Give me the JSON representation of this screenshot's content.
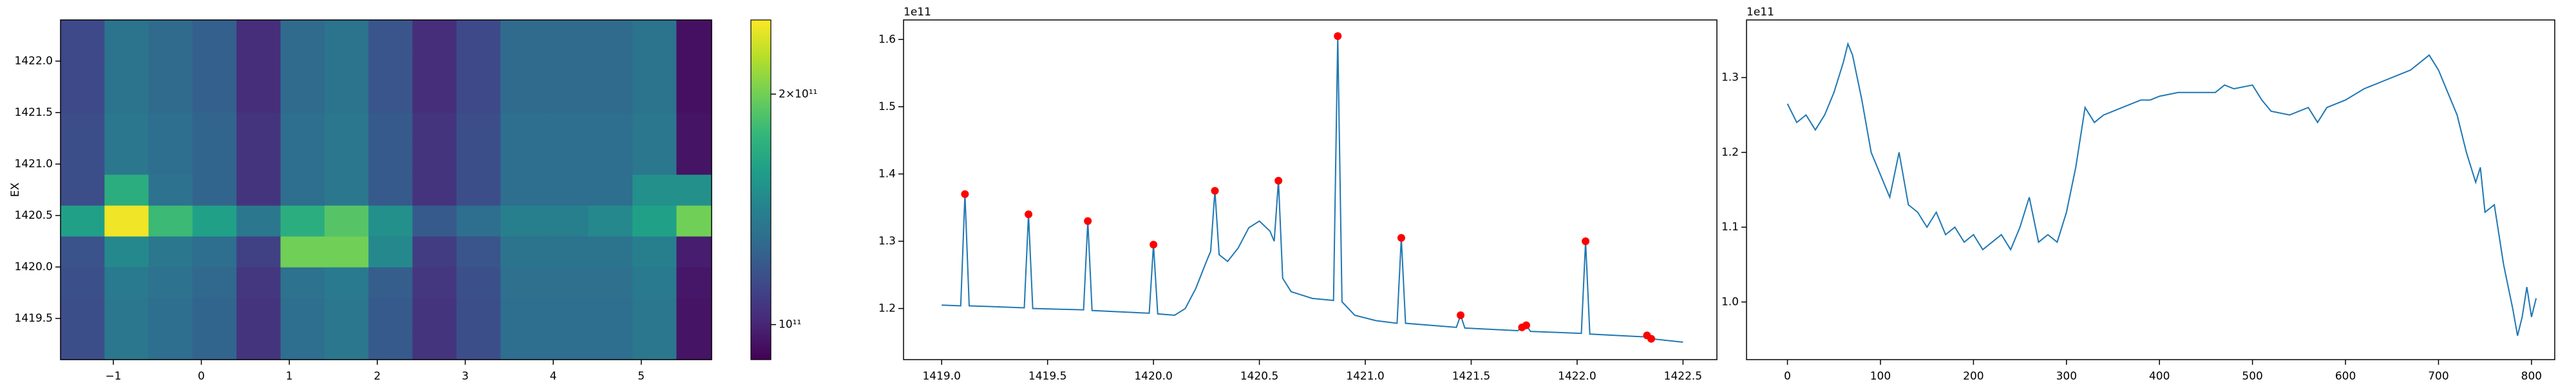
{
  "chart_data": [
    {
      "type": "heatmap",
      "y_label": "EX",
      "colormap": "viridis",
      "x_edges": [
        -1.6,
        -1.1,
        -0.6,
        -0.1,
        0.4,
        0.9,
        1.4,
        1.9,
        2.4,
        2.9,
        3.4,
        3.9,
        4.4,
        4.9,
        5.4,
        5.8
      ],
      "y_edges": [
        1419.1,
        1419.4,
        1419.7,
        1420.0,
        1420.3,
        1420.6,
        1420.9,
        1421.2,
        1421.5,
        1421.8,
        1422.1,
        1422.4
      ],
      "z": [
        [
          115000000000.0,
          135000000000.0,
          130000000000.0,
          125000000000.0,
          105000000000.0,
          130000000000.0,
          135000000000.0,
          120000000000.0,
          105000000000.0,
          115000000000.0,
          130000000000.0,
          130000000000.0,
          130000000000.0,
          135000000000.0,
          95000000000.0
        ],
        [
          115000000000.0,
          135000000000.0,
          130000000000.0,
          125000000000.0,
          105000000000.0,
          130000000000.0,
          135000000000.0,
          120000000000.0,
          105000000000.0,
          115000000000.0,
          130000000000.0,
          130000000000.0,
          130000000000.0,
          135000000000.0,
          95000000000.0
        ],
        [
          116000000000.0,
          137000000000.0,
          132000000000.0,
          127000000000.0,
          106000000000.0,
          132000000000.0,
          137000000000.0,
          122000000000.0,
          106000000000.0,
          116000000000.0,
          131000000000.0,
          131000000000.0,
          131000000000.0,
          137000000000.0,
          96000000000.0
        ],
        [
          117000000000.0,
          145000000000.0,
          135000000000.0,
          130000000000.0,
          110000000000.0,
          200000000000.0,
          200000000000.0,
          145000000000.0,
          108000000000.0,
          118000000000.0,
          133000000000.0,
          133000000000.0,
          133000000000.0,
          140000000000.0,
          98000000000.0
        ],
        [
          160000000000.0,
          245000000000.0,
          180000000000.0,
          160000000000.0,
          135000000000.0,
          170000000000.0,
          190000000000.0,
          150000000000.0,
          120000000000.0,
          130000000000.0,
          140000000000.0,
          140000000000.0,
          145000000000.0,
          160000000000.0,
          200000000000.0
        ],
        [
          115000000000.0,
          170000000000.0,
          132000000000.0,
          125000000000.0,
          105000000000.0,
          130000000000.0,
          135000000000.0,
          120000000000.0,
          105000000000.0,
          115000000000.0,
          130000000000.0,
          130000000000.0,
          130000000000.0,
          150000000000.0,
          150000000000.0
        ],
        [
          115000000000.0,
          135000000000.0,
          130000000000.0,
          125000000000.0,
          105000000000.0,
          130000000000.0,
          135000000000.0,
          120000000000.0,
          105000000000.0,
          115000000000.0,
          130000000000.0,
          130000000000.0,
          130000000000.0,
          135000000000.0,
          95000000000.0
        ],
        [
          115000000000.0,
          135000000000.0,
          130000000000.0,
          125000000000.0,
          105000000000.0,
          130000000000.0,
          135000000000.0,
          120000000000.0,
          105000000000.0,
          115000000000.0,
          130000000000.0,
          130000000000.0,
          130000000000.0,
          135000000000.0,
          95000000000.0
        ],
        [
          113000000000.0,
          133000000000.0,
          128000000000.0,
          123000000000.0,
          103000000000.0,
          128000000000.0,
          133000000000.0,
          118000000000.0,
          103000000000.0,
          113000000000.0,
          128000000000.0,
          128000000000.0,
          128000000000.0,
          133000000000.0,
          94000000000.0
        ],
        [
          113000000000.0,
          133000000000.0,
          128000000000.0,
          123000000000.0,
          103000000000.0,
          128000000000.0,
          133000000000.0,
          118000000000.0,
          103000000000.0,
          113000000000.0,
          128000000000.0,
          128000000000.0,
          128000000000.0,
          133000000000.0,
          94000000000.0
        ],
        [
          113000000000.0,
          133000000000.0,
          128000000000.0,
          123000000000.0,
          103000000000.0,
          128000000000.0,
          133000000000.0,
          118000000000.0,
          103000000000.0,
          113000000000.0,
          128000000000.0,
          128000000000.0,
          128000000000.0,
          133000000000.0,
          94000000000.0
        ]
      ],
      "xlim": [
        -1.6,
        5.8
      ],
      "xticks": [
        {
          "value": -1,
          "label": "−1"
        },
        0,
        1,
        2,
        3,
        4,
        5
      ],
      "ylim": [
        1419.1,
        1422.4
      ],
      "yticks": [
        1419.5,
        {
          "value": 1420.0,
          "label": "1420.0"
        },
        1420.5,
        {
          "value": 1421.0,
          "label": "1421.0"
        },
        1421.5,
        {
          "value": 1422.0,
          "label": "1422.0"
        }
      ],
      "colorbar": {
        "scale": "log",
        "lim": [
          90000000000.0,
          250000000000.0
        ],
        "ticks": [
          {
            "value": 200000000000.0,
            "label": "2×10¹¹"
          },
          {
            "value": 100000000000.0,
            "label": "10¹¹"
          }
        ]
      }
    },
    {
      "type": "line",
      "y_offset_text": "1e11",
      "xlim": [
        1418.82,
        1422.66
      ],
      "xticks": [
        {
          "value": 1419.0,
          "label": "1419.0"
        },
        1419.5,
        {
          "value": 1420.0,
          "label": "1420.0"
        },
        1420.5,
        {
          "value": 1421.0,
          "label": "1421.0"
        },
        1421.5,
        {
          "value": 1422.0,
          "label": "1422.0"
        },
        1422.5
      ],
      "ylim": [
        112400000000.0,
        162900000000.0
      ],
      "yticks": [
        {
          "value": 120000000000.0,
          "label": "1.2"
        },
        {
          "value": 130000000000.0,
          "label": "1.3"
        },
        {
          "value": 140000000000.0,
          "label": "1.4"
        },
        {
          "value": 150000000000.0,
          "label": "1.5"
        },
        {
          "value": 160000000000.0,
          "label": "1.6"
        }
      ],
      "series": [
        {
          "type": "line",
          "color": "#1f77b4",
          "x": [
            1419.0,
            1419.09,
            1419.11,
            1419.13,
            1419.39,
            1419.41,
            1419.43,
            1419.67,
            1419.69,
            1419.71,
            1419.98,
            1420.0,
            1420.02,
            1420.1,
            1420.15,
            1420.2,
            1420.25,
            1420.27,
            1420.29,
            1420.31,
            1420.35,
            1420.4,
            1420.45,
            1420.5,
            1420.55,
            1420.57,
            1420.59,
            1420.61,
            1420.65,
            1420.75,
            1420.85,
            1420.87,
            1420.89,
            1420.95,
            1421.05,
            1421.15,
            1421.17,
            1421.19,
            1421.43,
            1421.45,
            1421.47,
            1421.72,
            1421.74,
            1421.76,
            1421.78,
            1422.02,
            1422.04,
            1422.06,
            1422.31,
            1422.33,
            1422.35,
            1422.5
          ],
          "values": [
            120500000000.0,
            120400000000.0,
            137000000000.0,
            120400000000.0,
            120100000000.0,
            134000000000.0,
            120000000000.0,
            119800000000.0,
            133000000000.0,
            119700000000.0,
            119300000000.0,
            129500000000.0,
            119200000000.0,
            119000000000.0,
            120000000000.0,
            123000000000.0,
            127000000000.0,
            128500000000.0,
            137500000000.0,
            128000000000.0,
            127000000000.0,
            129000000000.0,
            132000000000.0,
            133000000000.0,
            131500000000.0,
            130000000000.0,
            139000000000.0,
            124500000000.0,
            122500000000.0,
            121500000000.0,
            121200000000.0,
            160500000000.0,
            121000000000.0,
            119000000000.0,
            118200000000.0,
            117800000000.0,
            130500000000.0,
            117800000000.0,
            117200000000.0,
            119000000000.0,
            117100000000.0,
            116700000000.0,
            117200000000.0,
            117500000000.0,
            116600000000.0,
            116300000000.0,
            130000000000.0,
            116200000000.0,
            115800000000.0,
            116000000000.0,
            115500000000.0,
            115000000000.0
          ]
        },
        {
          "type": "scatter",
          "color": "#ff0000",
          "x": [
            1419.11,
            1419.41,
            1419.69,
            1420.0,
            1420.29,
            1420.59,
            1420.87,
            1421.17,
            1421.45,
            1421.74,
            1421.76,
            1422.04,
            1422.33,
            1422.35
          ],
          "values": [
            137000000000.0,
            134000000000.0,
            133000000000.0,
            129500000000.0,
            137500000000.0,
            139000000000.0,
            160500000000.0,
            130500000000.0,
            119000000000.0,
            117200000000.0,
            117500000000.0,
            130000000000.0,
            116000000000.0,
            115500000000.0
          ]
        }
      ]
    },
    {
      "type": "line",
      "y_offset_text": "1e11",
      "xlim": [
        -44,
        825
      ],
      "xticks": [
        0,
        100,
        200,
        300,
        400,
        500,
        600,
        700,
        800
      ],
      "ylim": [
        92300000000.0,
        137700000000.0
      ],
      "yticks": [
        {
          "value": 100000000000.0,
          "label": "1.0"
        },
        {
          "value": 110000000000.0,
          "label": "1.1"
        },
        {
          "value": 120000000000.0,
          "label": "1.2"
        },
        {
          "value": 130000000000.0,
          "label": "1.3"
        }
      ],
      "series": [
        {
          "type": "line",
          "color": "#1f77b4",
          "x": [
            0,
            10,
            20,
            30,
            40,
            50,
            60,
            65,
            70,
            80,
            90,
            100,
            110,
            120,
            130,
            140,
            150,
            160,
            170,
            180,
            190,
            200,
            210,
            220,
            230,
            240,
            250,
            260,
            270,
            280,
            290,
            300,
            310,
            320,
            330,
            340,
            350,
            360,
            370,
            380,
            390,
            400,
            420,
            440,
            460,
            470,
            480,
            500,
            510,
            520,
            540,
            560,
            570,
            580,
            600,
            620,
            640,
            660,
            670,
            690,
            700,
            710,
            720,
            730,
            740,
            745,
            750,
            760,
            770,
            780,
            785,
            790,
            795,
            800,
            805
          ],
          "values": [
            126500000000.0,
            124000000000.0,
            125000000000.0,
            123000000000.0,
            125000000000.0,
            128000000000.0,
            132000000000.0,
            134500000000.0,
            133000000000.0,
            127000000000.0,
            120000000000.0,
            117000000000.0,
            114000000000.0,
            120000000000.0,
            113000000000.0,
            112000000000.0,
            110000000000.0,
            112000000000.0,
            109000000000.0,
            110000000000.0,
            108000000000.0,
            109000000000.0,
            107000000000.0,
            108000000000.0,
            109000000000.0,
            107000000000.0,
            110000000000.0,
            114000000000.0,
            108000000000.0,
            109000000000.0,
            108000000000.0,
            112000000000.0,
            118000000000.0,
            126000000000.0,
            124000000000.0,
            125000000000.0,
            125500000000.0,
            126000000000.0,
            126500000000.0,
            127000000000.0,
            127000000000.0,
            127500000000.0,
            128000000000.0,
            128000000000.0,
            128000000000.0,
            129000000000.0,
            128500000000.0,
            129000000000.0,
            127000000000.0,
            125500000000.0,
            125000000000.0,
            126000000000.0,
            124000000000.0,
            126000000000.0,
            127000000000.0,
            128500000000.0,
            129500000000.0,
            130500000000.0,
            131000000000.0,
            133000000000.0,
            131000000000.0,
            128000000000.0,
            125000000000.0,
            120000000000.0,
            116000000000.0,
            118000000000.0,
            112000000000.0,
            113000000000.0,
            105000000000.0,
            99000000000.0,
            95500000000.0,
            98000000000.0,
            102000000000.0,
            98000000000.0,
            100500000000.0
          ]
        }
      ]
    }
  ]
}
